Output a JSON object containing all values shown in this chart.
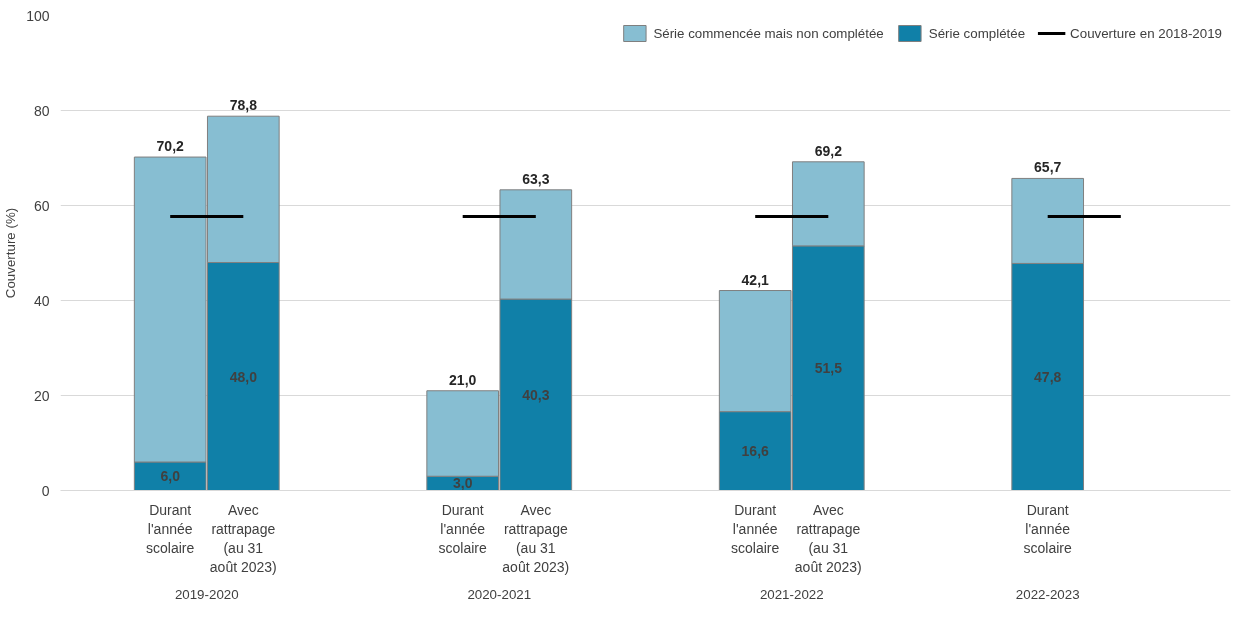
{
  "chart_data": {
    "type": "bar",
    "stacked": true,
    "ylabel": "Couverture (%)",
    "categories": [
      "Durant l'année scolaire",
      "Avec rattrapage (au 31 août 2023)",
      null,
      null,
      "Durant l'année scolaire",
      "Avec rattrapage (au 31 août 2023)",
      null,
      null,
      "Durant l'année scolaire",
      "Avec rattrapage (au 31 août 2023)",
      null,
      null,
      "Durant l'année scolaire",
      null,
      null
    ],
    "series": [
      {
        "name": "Série complétée",
        "color": "#1080a8",
        "values": [
          6.0,
          48.0,
          null,
          null,
          3.0,
          40.3,
          null,
          null,
          16.6,
          51.5,
          null,
          null,
          47.8,
          null,
          null
        ],
        "value_labels": [
          "6,0",
          "48,0",
          null,
          null,
          "3,0",
          "40,3",
          null,
          null,
          "16,6",
          "51,5",
          null,
          null,
          "47,8",
          null,
          null
        ]
      },
      {
        "name": "Série commencée mais non complétée",
        "color": "#87bed2",
        "values": [
          64.2,
          30.8,
          null,
          null,
          18.0,
          23.0,
          null,
          null,
          25.5,
          17.7,
          null,
          null,
          17.9,
          null,
          null
        ]
      },
      {
        "name": "Couverture en 2018-2019",
        "type": "line",
        "color": "#000000",
        "values": [
          57.7,
          57.7,
          null,
          null,
          57.7,
          57.7,
          null,
          null,
          57.7,
          57.7,
          null,
          null,
          57.7,
          57.7,
          null
        ]
      }
    ],
    "totals": [
      "70,2",
      "78,8",
      null,
      null,
      "21,0",
      "63,3",
      null,
      null,
      "42,1",
      "69,2",
      null,
      null,
      "65,7",
      null,
      null
    ],
    "annotations": [
      "2019-2020",
      "2020-2021",
      "2021-2022",
      "2022-2023"
    ],
    "ylim": [
      0,
      100
    ],
    "yticks": [
      0,
      20,
      40,
      60,
      80,
      100
    ],
    "grid": "y",
    "legend": "top right"
  }
}
